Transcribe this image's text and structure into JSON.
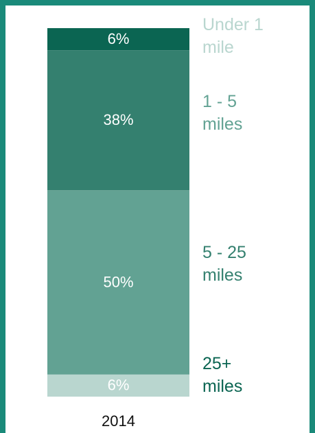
{
  "chart_data": {
    "type": "bar",
    "stacked": true,
    "orientation": "vertical",
    "categories": [
      "2014"
    ],
    "series": [
      {
        "name": "Under 1 mile",
        "label_lines": [
          "Under 1",
          "mile"
        ],
        "values": [
          6
        ],
        "value_label": "6%",
        "color": "#b9d6cf",
        "label_color": "#b9d6cf"
      },
      {
        "name": "1 - 5 miles",
        "label_lines": [
          "1 - 5",
          "miles"
        ],
        "values": [
          50
        ],
        "value_label": "50%",
        "color": "#62a293",
        "label_color": "#62a293"
      },
      {
        "name": "5 - 25 miles",
        "label_lines": [
          "5 - 25",
          "miles"
        ],
        "values": [
          38
        ],
        "value_label": "38%",
        "color": "#34806f",
        "label_color": "#34806f"
      },
      {
        "name": "25+ miles",
        "label_lines": [
          "25+",
          "miles"
        ],
        "values": [
          6
        ],
        "value_label": "6%",
        "color": "#0b6552",
        "label_color": "#0b6552"
      }
    ],
    "ylim": [
      0,
      100
    ],
    "legend": "right-inline",
    "grid": false
  }
}
